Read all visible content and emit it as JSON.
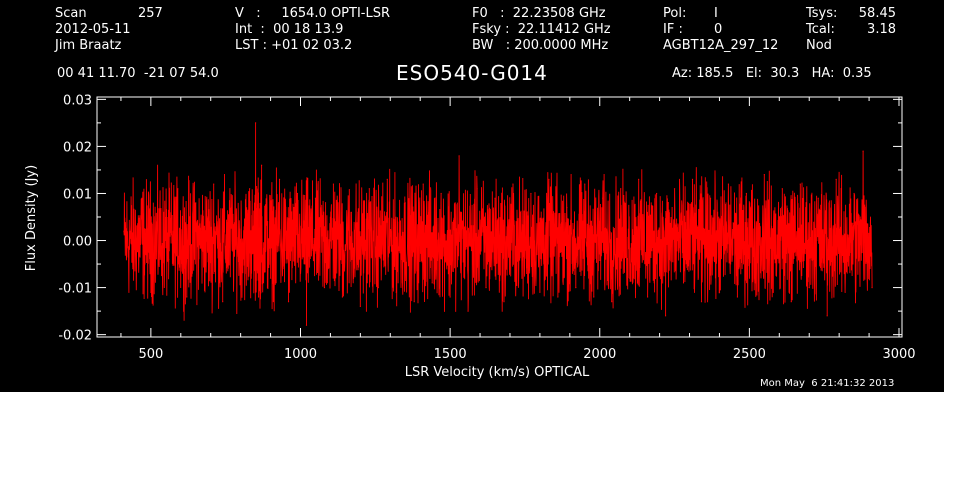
{
  "header": {
    "scan_label": "Scan",
    "scan_value": "257",
    "date": "2012-05-11",
    "observer": "Jim Braatz",
    "v_line": "V   :     1654.0 OPTI-LSR",
    "int_line": "Int  :  00 18 13.9",
    "lst_line": "LST : +01 02 03.2",
    "f0_line": "F0   :  22.23508 GHz",
    "fsky_line": "Fsky :  22.11412 GHz",
    "bw_line": "BW   : 200.0000 MHz",
    "pol_label": "Pol:",
    "pol_value": "I",
    "if_label": "IF :",
    "if_value": "0",
    "project": "AGBT12A_297_12",
    "tsys_label": "Tsys:",
    "tsys_value": "58.45",
    "tcal_label": "Tcal:",
    "tcal_value": "3.18",
    "mode": "Nod",
    "coords": "00 41 11.70  -21 07 54.0",
    "source": "ESO540-G014",
    "az_el_ha": "Az: 185.5   El:  30.3   HA:  0.35"
  },
  "footer": {
    "timestamp": "Mon May  6 21:41:32 2013"
  },
  "colors": {
    "background": "#000000",
    "axes": "#ffffff",
    "spectrum": "#ff0000"
  },
  "chart_data": {
    "type": "line",
    "title": "ESO540-G014",
    "xlabel": "LSR Velocity (km/s) OPTICAL",
    "ylabel": "Flux Density (Jy)",
    "xlim": [
      320,
      3010
    ],
    "ylim": [
      -0.0205,
      0.0305
    ],
    "x_ticks": [
      500,
      1000,
      1500,
      2000,
      2500,
      3000
    ],
    "x_tick_labels": [
      "500",
      "1000",
      "1500",
      "2000",
      "2500",
      "3000"
    ],
    "y_ticks": [
      -0.02,
      -0.01,
      0.0,
      0.01,
      0.02,
      0.03
    ],
    "y_tick_labels": [
      "-0.02",
      "-0.01",
      "0.00",
      "0.01",
      "0.02",
      "0.03"
    ],
    "grid": false,
    "series": [
      {
        "color": "#ff0000",
        "x": [
          410,
          440,
          470,
          500,
          530,
          560,
          590,
          620,
          650,
          680,
          710,
          740,
          770,
          800,
          830,
          850,
          860,
          870,
          900,
          930,
          960,
          990,
          1020,
          1050,
          1080,
          1110,
          1140,
          1170,
          1200,
          1230,
          1260,
          1290,
          1320,
          1350,
          1380,
          1410,
          1440,
          1470,
          1500,
          1530,
          1560,
          1590,
          1620,
          1650,
          1680,
          1710,
          1740,
          1770,
          1800,
          1830,
          1860,
          1890,
          1920,
          1950,
          1980,
          2010,
          2040,
          2070,
          2100,
          2130,
          2160,
          2190,
          2220,
          2250,
          2280,
          2310,
          2340,
          2370,
          2400,
          2430,
          2460,
          2490,
          2520,
          2550,
          2580,
          2610,
          2640,
          2670,
          2700,
          2730,
          2760,
          2790,
          2820,
          2850,
          2880,
          2910
        ],
        "y": [
          0.002,
          -0.006,
          0.009,
          -0.011,
          0.006,
          -0.004,
          0.011,
          -0.012,
          0.008,
          -0.003,
          0.012,
          -0.013,
          0.007,
          -0.006,
          0.011,
          0.025,
          -0.012,
          0.016,
          -0.008,
          0.013,
          -0.013,
          0.01,
          -0.018,
          0.009,
          -0.01,
          0.012,
          -0.012,
          0.006,
          -0.014,
          0.011,
          -0.01,
          0.013,
          -0.011,
          0.008,
          -0.013,
          0.012,
          -0.009,
          0.01,
          -0.012,
          0.018,
          -0.015,
          0.011,
          -0.01,
          0.009,
          -0.013,
          0.012,
          -0.008,
          0.01,
          -0.011,
          0.013,
          -0.012,
          0.007,
          -0.01,
          0.012,
          -0.012,
          0.009,
          -0.013,
          0.011,
          -0.008,
          0.013,
          -0.012,
          0.01,
          -0.016,
          0.011,
          -0.009,
          0.013,
          -0.013,
          0.009,
          -0.011,
          0.012,
          -0.012,
          0.01,
          -0.009,
          0.014,
          -0.011,
          0.011,
          -0.013,
          0.012,
          -0.01,
          0.009,
          -0.016,
          0.013,
          -0.011,
          0.01,
          0.019,
          -0.01
        ]
      }
    ]
  }
}
